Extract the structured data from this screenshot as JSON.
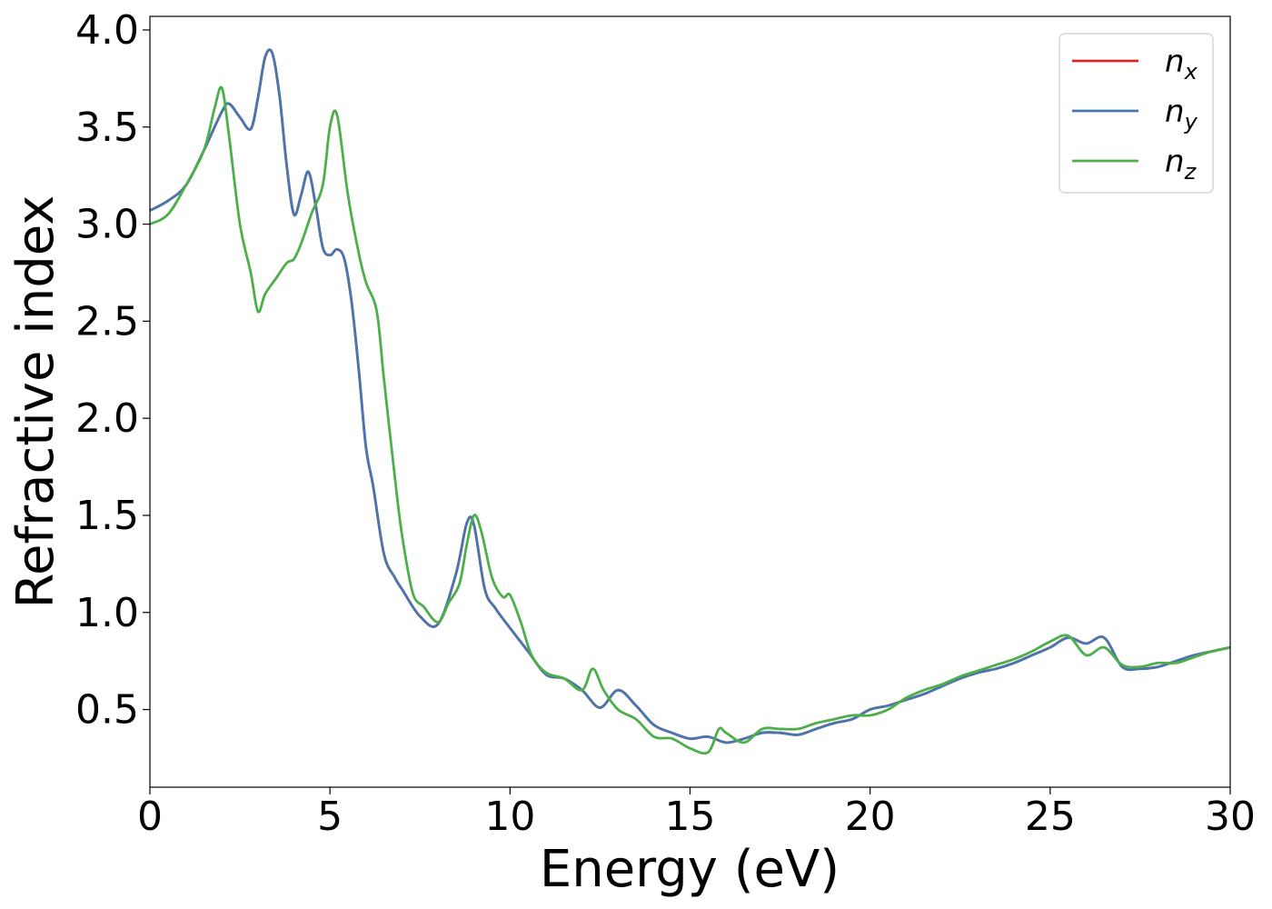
{
  "chart_data": {
    "type": "line",
    "title": "",
    "xlabel": "Energy (eV)",
    "ylabel": "Refractive index",
    "xlim": [
      0,
      30
    ],
    "ylim": [
      0.1,
      4.07
    ],
    "xticks": [
      0,
      5,
      10,
      15,
      20,
      25,
      30
    ],
    "xtick_labels": [
      "0",
      "5",
      "10",
      "15",
      "20",
      "25",
      "30"
    ],
    "yticks": [
      0.5,
      1.0,
      1.5,
      2.0,
      2.5,
      3.0,
      3.5,
      4.0
    ],
    "ytick_labels": [
      "0.5",
      "1.0",
      "1.5",
      "2.0",
      "2.5",
      "3.0",
      "3.5",
      "4.0"
    ],
    "grid": false,
    "legend_position": "top-right",
    "series": [
      {
        "name": "n_x",
        "label_base": "n",
        "label_sub": "x",
        "color": "#d62728",
        "x": [
          0,
          0.5,
          1,
          1.5,
          2,
          2.2,
          2.5,
          2.8,
          3,
          3.2,
          3.4,
          3.6,
          3.8,
          4,
          4.2,
          4.4,
          4.6,
          4.8,
          5,
          5.2,
          5.4,
          5.6,
          5.8,
          6,
          6.2,
          6.5,
          6.8,
          7,
          7.5,
          8,
          8.5,
          8.8,
          9,
          9.3,
          9.6,
          10,
          10.5,
          11,
          11.5,
          12,
          12.5,
          13,
          13.5,
          14,
          14.5,
          15,
          15.5,
          16,
          16.5,
          17,
          17.5,
          18,
          18.5,
          19,
          19.5,
          20,
          20.5,
          21,
          21.5,
          22,
          22.5,
          23,
          23.5,
          24,
          24.5,
          25,
          25.5,
          26,
          26.5,
          27,
          27.5,
          28,
          28.5,
          29,
          29.5,
          30
        ],
        "y": [
          3.07,
          3.12,
          3.2,
          3.38,
          3.58,
          3.62,
          3.55,
          3.49,
          3.65,
          3.86,
          3.88,
          3.66,
          3.3,
          3.05,
          3.15,
          3.27,
          3.1,
          2.88,
          2.84,
          2.87,
          2.82,
          2.6,
          2.25,
          1.85,
          1.65,
          1.3,
          1.18,
          1.12,
          0.98,
          0.94,
          1.2,
          1.46,
          1.45,
          1.12,
          1.02,
          0.92,
          0.8,
          0.68,
          0.66,
          0.6,
          0.51,
          0.6,
          0.52,
          0.42,
          0.38,
          0.35,
          0.36,
          0.33,
          0.35,
          0.38,
          0.38,
          0.37,
          0.4,
          0.43,
          0.45,
          0.5,
          0.52,
          0.55,
          0.58,
          0.62,
          0.66,
          0.69,
          0.71,
          0.74,
          0.78,
          0.82,
          0.87,
          0.84,
          0.87,
          0.72,
          0.71,
          0.72,
          0.75,
          0.78,
          0.8,
          0.82
        ]
      },
      {
        "name": "n_y",
        "label_base": "n",
        "label_sub": "y",
        "color": "#4a76b0",
        "x": [
          0,
          0.5,
          1,
          1.5,
          2,
          2.2,
          2.5,
          2.8,
          3,
          3.2,
          3.4,
          3.6,
          3.8,
          4,
          4.2,
          4.4,
          4.6,
          4.8,
          5,
          5.2,
          5.4,
          5.6,
          5.8,
          6,
          6.2,
          6.5,
          6.8,
          7,
          7.5,
          8,
          8.5,
          8.8,
          9,
          9.3,
          9.6,
          10,
          10.5,
          11,
          11.5,
          12,
          12.5,
          13,
          13.5,
          14,
          14.5,
          15,
          15.5,
          16,
          16.5,
          17,
          17.5,
          18,
          18.5,
          19,
          19.5,
          20,
          20.5,
          21,
          21.5,
          22,
          22.5,
          23,
          23.5,
          24,
          24.5,
          25,
          25.5,
          26,
          26.5,
          27,
          27.5,
          28,
          28.5,
          29,
          29.5,
          30
        ],
        "y": [
          3.07,
          3.12,
          3.2,
          3.38,
          3.58,
          3.62,
          3.55,
          3.49,
          3.65,
          3.86,
          3.88,
          3.66,
          3.3,
          3.05,
          3.15,
          3.27,
          3.1,
          2.88,
          2.84,
          2.87,
          2.82,
          2.6,
          2.25,
          1.85,
          1.65,
          1.3,
          1.18,
          1.12,
          0.98,
          0.94,
          1.2,
          1.46,
          1.45,
          1.12,
          1.02,
          0.92,
          0.8,
          0.68,
          0.66,
          0.6,
          0.51,
          0.6,
          0.52,
          0.42,
          0.38,
          0.35,
          0.36,
          0.33,
          0.35,
          0.38,
          0.38,
          0.37,
          0.4,
          0.43,
          0.45,
          0.5,
          0.52,
          0.55,
          0.58,
          0.62,
          0.66,
          0.69,
          0.71,
          0.74,
          0.78,
          0.82,
          0.87,
          0.84,
          0.87,
          0.72,
          0.71,
          0.72,
          0.75,
          0.78,
          0.8,
          0.82
        ]
      },
      {
        "name": "n_z",
        "label_base": "n",
        "label_sub": "z",
        "color": "#4daf4a",
        "x": [
          0,
          0.5,
          1,
          1.5,
          1.8,
          2,
          2.2,
          2.5,
          2.8,
          3,
          3.2,
          3.5,
          3.8,
          4,
          4.2,
          4.5,
          4.8,
          5,
          5.2,
          5.5,
          5.8,
          6,
          6.3,
          6.5,
          6.8,
          7,
          7.3,
          7.6,
          8,
          8.3,
          8.6,
          8.8,
          9,
          9.2,
          9.5,
          9.8,
          10,
          10.3,
          10.6,
          11,
          11.5,
          12,
          12.3,
          12.6,
          13,
          13.5,
          14,
          14.5,
          15,
          15.5,
          15.8,
          16,
          16.5,
          17,
          17.5,
          18,
          18.5,
          19,
          19.5,
          20,
          20.5,
          21,
          21.5,
          22,
          22.5,
          23,
          23.5,
          24,
          24.5,
          25,
          25.5,
          26,
          26.5,
          27,
          27.5,
          28,
          28.5,
          29,
          29.5,
          30
        ],
        "y": [
          3.0,
          3.05,
          3.2,
          3.38,
          3.6,
          3.7,
          3.45,
          3.0,
          2.75,
          2.55,
          2.64,
          2.72,
          2.8,
          2.82,
          2.9,
          3.06,
          3.2,
          3.5,
          3.56,
          3.15,
          2.85,
          2.7,
          2.55,
          2.2,
          1.7,
          1.4,
          1.1,
          1.03,
          0.95,
          1.05,
          1.15,
          1.35,
          1.5,
          1.42,
          1.18,
          1.08,
          1.09,
          0.95,
          0.78,
          0.69,
          0.66,
          0.6,
          0.71,
          0.6,
          0.5,
          0.45,
          0.36,
          0.35,
          0.3,
          0.28,
          0.4,
          0.38,
          0.33,
          0.4,
          0.4,
          0.4,
          0.43,
          0.45,
          0.47,
          0.47,
          0.5,
          0.56,
          0.6,
          0.63,
          0.67,
          0.7,
          0.73,
          0.76,
          0.8,
          0.85,
          0.88,
          0.78,
          0.82,
          0.73,
          0.72,
          0.74,
          0.74,
          0.77,
          0.8,
          0.82
        ]
      }
    ]
  }
}
